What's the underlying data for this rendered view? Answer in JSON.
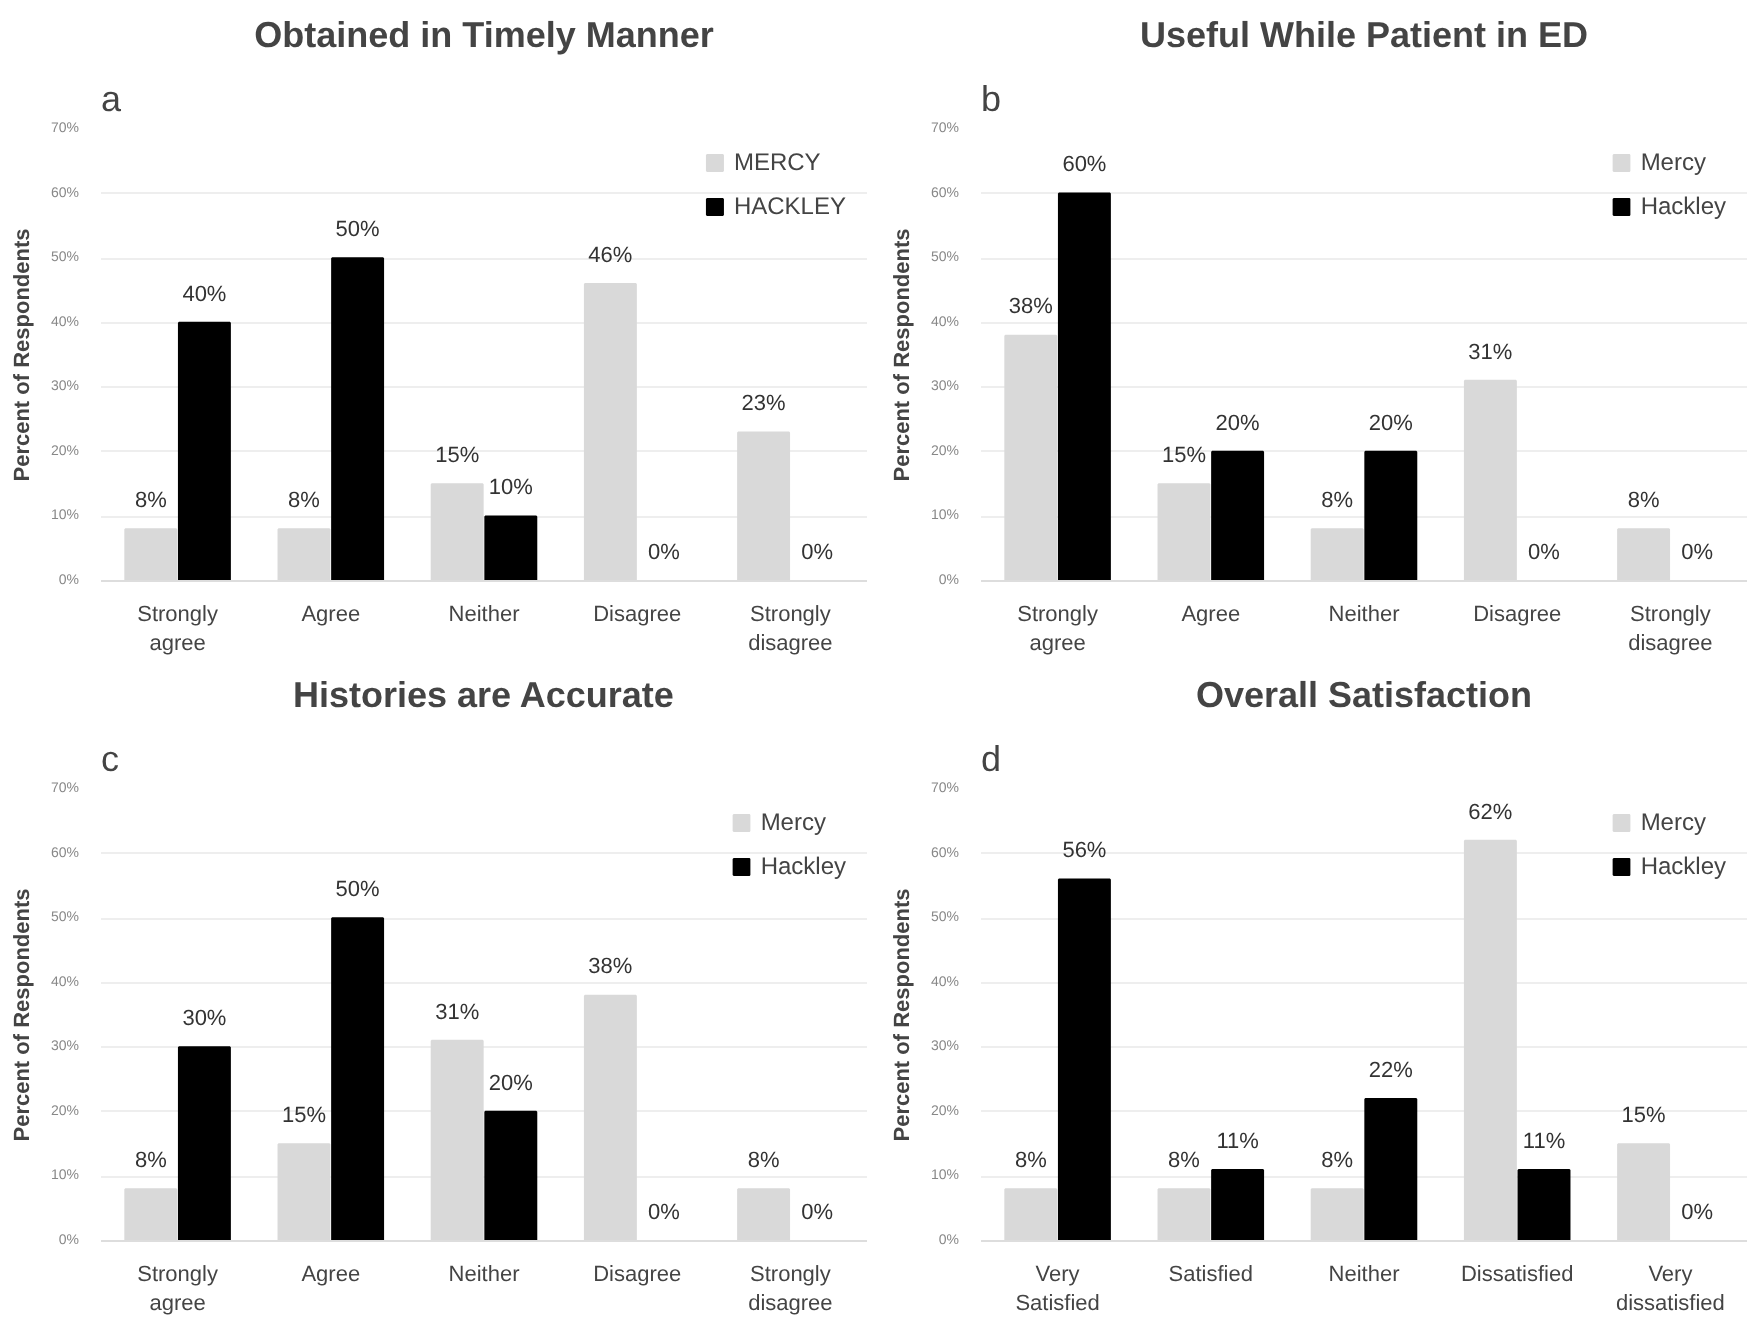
{
  "chart_data": [
    {
      "type": "bar",
      "title": "Obtained in Timely Manner",
      "ylabel": "Percent of Respondents",
      "annotations": [
        "a"
      ],
      "categories": [
        "Strongly agree",
        "Agree",
        "Neither",
        "Disagree",
        "Strongly disagree"
      ],
      "series": [
        {
          "name": "MERCY",
          "color": "#d9d9d9",
          "values": [
            8,
            8,
            15,
            46,
            23
          ],
          "value_labels": [
            "8%",
            "8%",
            "15%",
            "46%",
            "23%"
          ]
        },
        {
          "name": "HACKLEY",
          "color": "#000000",
          "values": [
            40,
            50,
            10,
            0,
            0
          ],
          "value_labels": [
            "40%",
            "50%",
            "10%",
            "0%",
            "0%"
          ]
        }
      ],
      "ylim": [
        0,
        70
      ],
      "yticks": [
        {
          "value": 0,
          "label": "0%"
        },
        {
          "value": 10,
          "label": "10%"
        },
        {
          "value": 20,
          "label": "20%"
        },
        {
          "value": 30,
          "label": "30%"
        },
        {
          "value": 40,
          "label": "40%"
        },
        {
          "value": 50,
          "label": "50%"
        },
        {
          "value": 60,
          "label": "60%"
        },
        {
          "value": 70,
          "label": "70%"
        }
      ],
      "grid": "y",
      "legend": "top right"
    },
    {
      "type": "bar",
      "title": "Useful While Patient in ED",
      "ylabel": "Percent of Respondents",
      "annotations": [
        "b"
      ],
      "categories": [
        "Strongly agree",
        "Agree",
        "Neither",
        "Disagree",
        "Strongly disagree"
      ],
      "series": [
        {
          "name": "Mercy",
          "color": "#d9d9d9",
          "values": [
            38,
            15,
            8,
            31,
            8
          ],
          "value_labels": [
            "38%",
            "15%",
            "8%",
            "31%",
            "8%"
          ]
        },
        {
          "name": "Hackley",
          "color": "#000000",
          "values": [
            60,
            20,
            20,
            0,
            0
          ],
          "value_labels": [
            "60%",
            "20%",
            "20%",
            "0%",
            "0%"
          ]
        }
      ],
      "ylim": [
        0,
        70
      ],
      "yticks": [
        {
          "value": 0,
          "label": "0%"
        },
        {
          "value": 10,
          "label": "10%"
        },
        {
          "value": 20,
          "label": "20%"
        },
        {
          "value": 30,
          "label": "30%"
        },
        {
          "value": 40,
          "label": "40%"
        },
        {
          "value": 50,
          "label": "50%"
        },
        {
          "value": 60,
          "label": "60%"
        },
        {
          "value": 70,
          "label": "70%"
        }
      ],
      "grid": "y",
      "legend": "top right"
    },
    {
      "type": "bar",
      "title": "Histories are Accurate",
      "ylabel": "Percent of Respondents",
      "annotations": [
        "c"
      ],
      "categories": [
        "Strongly agree",
        "Agree",
        "Neither",
        "Disagree",
        "Strongly disagree"
      ],
      "series": [
        {
          "name": "Mercy",
          "color": "#d9d9d9",
          "values": [
            8,
            15,
            31,
            38,
            8
          ],
          "value_labels": [
            "8%",
            "15%",
            "31%",
            "38%",
            "8%"
          ]
        },
        {
          "name": "Hackley",
          "color": "#000000",
          "values": [
            30,
            50,
            20,
            0,
            0
          ],
          "value_labels": [
            "30%",
            "50%",
            "20%",
            "0%",
            "0%"
          ]
        }
      ],
      "ylim": [
        0,
        70
      ],
      "yticks": [
        {
          "value": 0,
          "label": "0%"
        },
        {
          "value": 10,
          "label": "10%"
        },
        {
          "value": 20,
          "label": "20%"
        },
        {
          "value": 30,
          "label": "30%"
        },
        {
          "value": 40,
          "label": "40%"
        },
        {
          "value": 50,
          "label": "50%"
        },
        {
          "value": 60,
          "label": "60%"
        },
        {
          "value": 70,
          "label": "70%"
        }
      ],
      "grid": "y",
      "legend": "top right"
    },
    {
      "type": "bar",
      "title": "Overall Satisfaction",
      "ylabel": "Percent of Respondents",
      "annotations": [
        "d"
      ],
      "categories": [
        "Very Satisfied",
        "Satisfied",
        "Neither",
        "Dissatisfied",
        "Very dissatisfied"
      ],
      "series": [
        {
          "name": "Mercy",
          "color": "#d9d9d9",
          "values": [
            8,
            8,
            8,
            62,
            15
          ],
          "value_labels": [
            "8%",
            "8%",
            "8%",
            "62%",
            "15%"
          ]
        },
        {
          "name": "Hackley",
          "color": "#000000",
          "values": [
            56,
            11,
            22,
            11,
            0
          ],
          "value_labels": [
            "56%",
            "11%",
            "22%",
            "11%",
            "0%"
          ]
        }
      ],
      "ylim": [
        0,
        70
      ],
      "yticks": [
        {
          "value": 0,
          "label": "0%"
        },
        {
          "value": 10,
          "label": "10%"
        },
        {
          "value": 20,
          "label": "20%"
        },
        {
          "value": 30,
          "label": "30%"
        },
        {
          "value": 40,
          "label": "40%"
        },
        {
          "value": 50,
          "label": "50%"
        },
        {
          "value": 60,
          "label": "60%"
        },
        {
          "value": 70,
          "label": "70%"
        }
      ],
      "grid": "y",
      "legend": "top right"
    }
  ]
}
